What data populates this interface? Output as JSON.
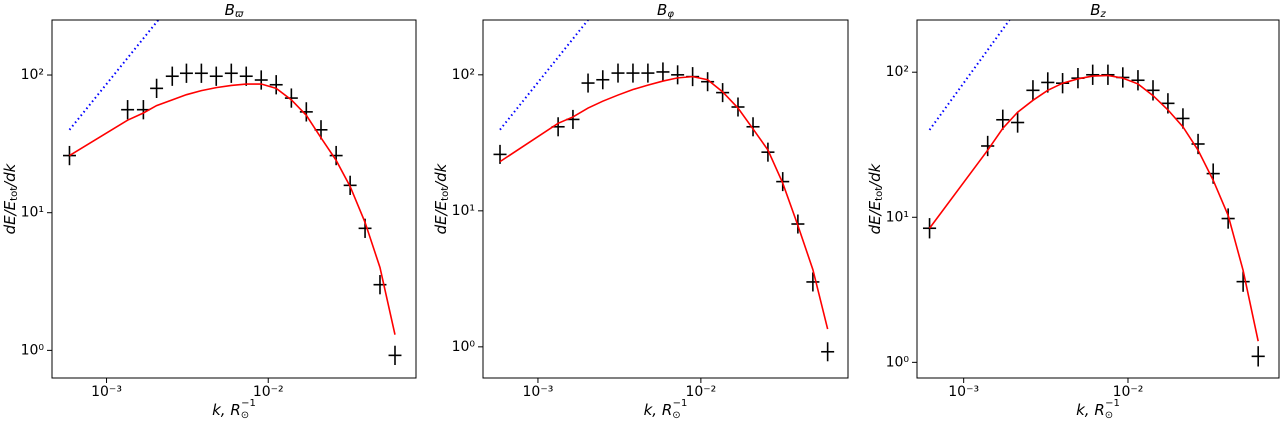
{
  "chart_data": [
    {
      "type": "errorbar_line",
      "title": "B",
      "title_sub": "ϖ",
      "xlabel": "k, R",
      "xlabel_sub": "⊙",
      "xlabel_sup": "−1",
      "ylabel": "dE/E",
      "ylabel_sub": "tot",
      "ylabel_end": "/dk",
      "log_x": true,
      "log_y": true,
      "grid": false,
      "xlim": [
        0.00046,
        0.082
      ],
      "ylim": [
        0.63,
        251
      ],
      "xticks": [
        {
          "value": 0.001,
          "label": "10⁻³"
        },
        {
          "value": 0.01,
          "label": "10⁻²"
        }
      ],
      "yticks": [
        {
          "value": 1,
          "label": "10⁰"
        },
        {
          "value": 10,
          "label": "10¹"
        },
        {
          "value": 100,
          "label": "10²"
        }
      ],
      "yerr_dex": 0.07,
      "xerr_dex": 0.04,
      "x": [
        0.00059,
        0.00135,
        0.00169,
        0.00204,
        0.00255,
        0.00312,
        0.00386,
        0.00477,
        0.00591,
        0.00731,
        0.00905,
        0.0112,
        0.0139,
        0.0172,
        0.0212,
        0.0263,
        0.0321,
        0.0397,
        0.0491,
        0.0608
      ],
      "series": [
        {
          "style": "errorbar",
          "color": "#000000",
          "values": [
            26,
            56,
            56,
            80,
            98,
            103,
            103,
            98,
            103,
            98,
            92,
            85,
            68,
            54,
            40,
            26,
            15.8,
            7.7,
            3.0,
            0.92
          ]
        },
        {
          "style": "solid",
          "color": "#ff0000",
          "values": [
            26,
            47,
            53,
            60,
            66,
            72,
            77,
            81,
            84,
            86,
            86,
            80,
            66,
            51,
            35,
            24,
            15.5,
            8.5,
            4.0,
            1.3
          ]
        },
        {
          "style": "dotted",
          "color": "#0000ff",
          "x": [
            0.00059,
            0.00209
          ],
          "values": [
            40,
            251
          ]
        }
      ]
    },
    {
      "type": "errorbar_line",
      "title": "B",
      "title_sub": "φ",
      "xlabel": "k, R",
      "xlabel_sub": "⊙",
      "xlabel_sup": "−1",
      "ylabel": "dE/E",
      "ylabel_sub": "tot",
      "ylabel_end": "/dk",
      "log_x": true,
      "log_y": true,
      "grid": false,
      "xlim": [
        0.00046,
        0.08
      ],
      "ylim": [
        0.59,
        253
      ],
      "xticks": [
        {
          "value": 0.001,
          "label": "10⁻³"
        },
        {
          "value": 0.01,
          "label": "10⁻²"
        }
      ],
      "yticks": [
        {
          "value": 1,
          "label": "10⁰"
        },
        {
          "value": 10,
          "label": "10¹"
        },
        {
          "value": 100,
          "label": "10²"
        }
      ],
      "yerr_dex": 0.07,
      "xerr_dex": 0.04,
      "x": [
        0.000585,
        0.00133,
        0.00164,
        0.00203,
        0.0025,
        0.0031,
        0.00383,
        0.00473,
        0.00585,
        0.0072,
        0.0089,
        0.011,
        0.0136,
        0.0169,
        0.0209,
        0.0258,
        0.0318,
        0.0394,
        0.0487,
        0.06
      ],
      "series": [
        {
          "style": "errorbar",
          "color": "#000000",
          "values": [
            26,
            41.5,
            47,
            87,
            92,
            103,
            103,
            103,
            105,
            100,
            97,
            89,
            74,
            58,
            41.5,
            27,
            16.4,
            8.0,
            3.0,
            0.92
          ]
        },
        {
          "style": "solid",
          "color": "#ff0000",
          "values": [
            23,
            44,
            49,
            57,
            64,
            71,
            78,
            84,
            90,
            95,
            97,
            92,
            75,
            57,
            40,
            28,
            16,
            7.8,
            3.7,
            1.35
          ]
        },
        {
          "style": "dotted",
          "color": "#0000ff",
          "x": [
            0.000585,
            0.00203
          ],
          "values": [
            39.5,
            253
          ]
        }
      ]
    },
    {
      "type": "errorbar_line",
      "title": "B",
      "title_sub": "z",
      "xlabel": "k, R",
      "xlabel_sub": "⊙",
      "xlabel_sup": "−1",
      "ylabel": "dE/E",
      "ylabel_sub": "tot",
      "ylabel_end": "/dk",
      "log_x": true,
      "log_y": true,
      "grid": false,
      "xlim": [
        0.00052,
        0.083
      ],
      "ylim": [
        0.78,
        229
      ],
      "xticks": [
        {
          "value": 0.001,
          "label": "10⁻³"
        },
        {
          "value": 0.01,
          "label": "10⁻²"
        }
      ],
      "yticks": [
        {
          "value": 1,
          "label": "10⁰"
        },
        {
          "value": 10,
          "label": "10¹"
        },
        {
          "value": 100,
          "label": "10²"
        }
      ],
      "yerr_dex": 0.07,
      "xerr_dex": 0.04,
      "x": [
        0.00062,
        0.0014,
        0.00173,
        0.00213,
        0.00264,
        0.00325,
        0.004,
        0.00496,
        0.0061,
        0.00755,
        0.0093,
        0.0115,
        0.0142,
        0.0175,
        0.0216,
        0.0267,
        0.033,
        0.0407,
        0.0502,
        0.062
      ],
      "series": [
        {
          "style": "errorbar",
          "color": "#000000",
          "values": [
            8.4,
            31,
            47,
            45,
            75,
            85,
            84,
            91,
            96,
            96,
            92,
            88,
            75,
            61,
            48,
            32,
            20,
            9.8,
            3.6,
            1.1
          ]
        },
        {
          "style": "solid",
          "color": "#ff0000",
          "values": [
            8.4,
            29,
            41,
            53,
            64,
            75,
            84,
            90,
            94,
            95,
            91,
            83,
            69,
            55,
            42,
            29,
            18,
            10.3,
            4.3,
            1.4
          ]
        },
        {
          "style": "dotted",
          "color": "#0000ff",
          "x": [
            0.00062,
            0.0019
          ],
          "values": [
            40,
            229
          ]
        }
      ]
    }
  ]
}
